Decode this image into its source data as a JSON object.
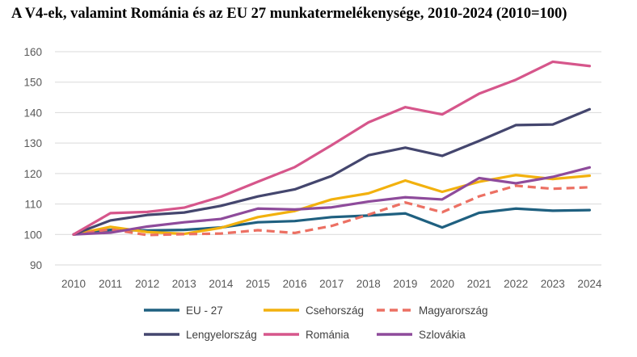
{
  "chart_data": {
    "type": "line",
    "title": "A V4-ek, valamint Románia és az EU 27 munkatermelékenysége, 2010-2024 (2010=100)",
    "xlabel": "",
    "ylabel": "",
    "ylim": [
      90,
      160
    ],
    "yticks": [
      90,
      100,
      110,
      120,
      130,
      140,
      150,
      160
    ],
    "grid": true,
    "legend_position": "bottom",
    "categories": [
      "2010",
      "2011",
      "2012",
      "2013",
      "2014",
      "2015",
      "2016",
      "2017",
      "2018",
      "2019",
      "2020",
      "2021",
      "2022",
      "2023",
      "2024"
    ],
    "series": [
      {
        "name": "EU - 27",
        "color": "#1F6080",
        "dashed": false,
        "values": [
          100,
          101.5,
          101.3,
          101.5,
          102.3,
          104,
          104.4,
          105.7,
          106.2,
          106.9,
          102.3,
          107.1,
          108.5,
          107.8,
          108
        ]
      },
      {
        "name": "Csehország",
        "color": "#F2B10E",
        "dashed": false,
        "values": [
          100,
          102.5,
          100.8,
          100.2,
          102.2,
          105.7,
          107.7,
          111.5,
          113.5,
          117.7,
          114,
          117.3,
          119.5,
          118.2,
          119.3
        ]
      },
      {
        "name": "Magyarország",
        "color": "#EC7063",
        "dashed": true,
        "values": [
          100,
          101.7,
          99.8,
          100.1,
          100.3,
          101.4,
          100.5,
          102.8,
          106.5,
          110.5,
          107.3,
          112.5,
          116,
          115,
          115.5
        ]
      },
      {
        "name": "Lengyelország",
        "color": "#44466E",
        "dashed": false,
        "values": [
          100,
          104.6,
          106.4,
          107.2,
          109.4,
          112.5,
          114.8,
          119.2,
          126,
          128.5,
          125.8,
          130.7,
          135.9,
          136.1,
          141.1
        ]
      },
      {
        "name": "Románia",
        "color": "#D6568B",
        "dashed": false,
        "values": [
          100,
          107,
          107.4,
          108.8,
          112.4,
          117.3,
          122.1,
          129.3,
          136.8,
          141.8,
          139.4,
          146.2,
          150.8,
          156.7,
          155.3
        ]
      },
      {
        "name": "Szlovákia",
        "color": "#8E4B9B",
        "dashed": false,
        "values": [
          100,
          100.6,
          102.6,
          104,
          105.1,
          108.5,
          108.2,
          108.9,
          110.8,
          112.2,
          111.5,
          118.5,
          116.8,
          118.9,
          122
        ]
      }
    ]
  }
}
